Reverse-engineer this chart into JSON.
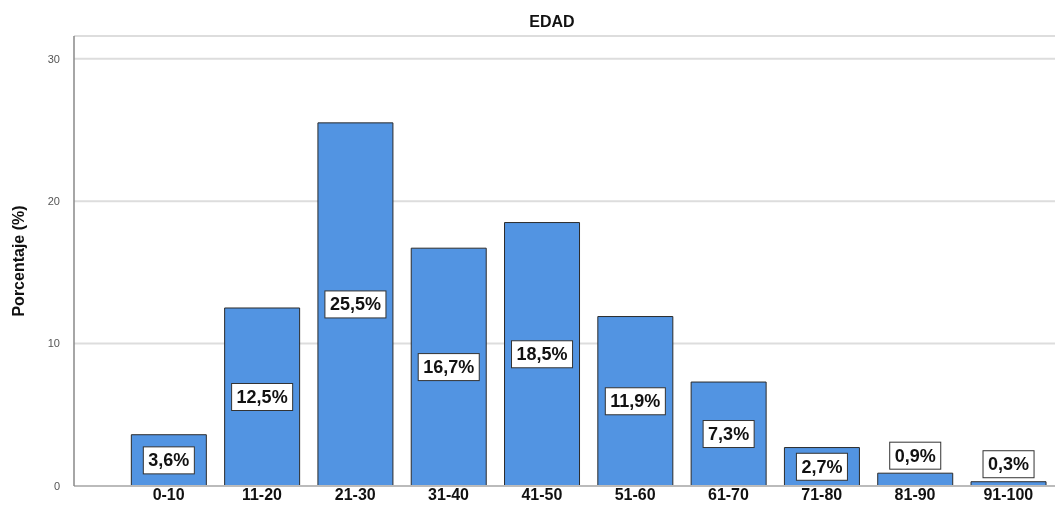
{
  "chart_data": {
    "type": "bar",
    "title": "EDAD",
    "ylabel": "Porcentaje (%)",
    "categories": [
      "0-10",
      "11-20",
      "21-30",
      "31-40",
      "41-50",
      "51-60",
      "61-70",
      "71-80",
      "81-90",
      "91-100"
    ],
    "values": [
      3.6,
      12.5,
      25.5,
      16.7,
      18.5,
      11.9,
      7.3,
      2.7,
      0.9,
      0.3
    ],
    "value_labels": [
      "3,6%",
      "12,5%",
      "25,5%",
      "16,7%",
      "18,5%",
      "11,9%",
      "7,3%",
      "2,7%",
      "0,9%",
      "0,3%"
    ],
    "color": "#5294e2",
    "ylim": [
      0,
      31.6
    ],
    "yticks": [
      0,
      10,
      20,
      30
    ],
    "grid": "y"
  }
}
